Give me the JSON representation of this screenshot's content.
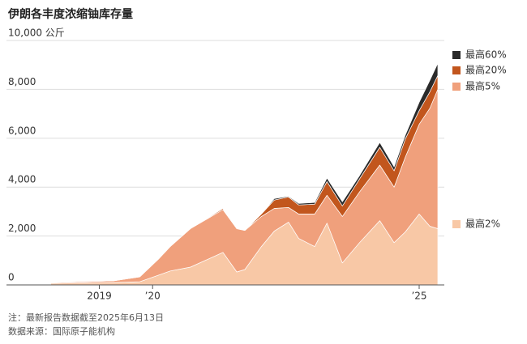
{
  "chart_data": {
    "type": "stacked-area",
    "title": "伊朗各丰度浓缩铀库存量",
    "notes": [
      "注：最新报告数据截至2025年6月13日",
      "数据来源：国际原子能机构"
    ],
    "x": [
      2018.09,
      2019.27,
      2019.76,
      2020.11,
      2020.33,
      2020.71,
      2021.32,
      2021.58,
      2021.73,
      2022.04,
      2022.28,
      2022.55,
      2022.74,
      2023.04,
      2023.27,
      2023.56,
      2023.88,
      2024.26,
      2024.53,
      2024.74,
      2025.0,
      2025.2,
      2025.35
    ],
    "xlim": [
      2018.05,
      2025.38
    ],
    "xticks": [
      2019,
      {
        "value": 2020,
        "label": "’20"
      },
      {
        "value": 2025,
        "label": "’25"
      }
    ],
    "ylim": [
      0,
      10000
    ],
    "yticks": [
      0,
      {
        "value": 2000,
        "label": "2,000"
      },
      {
        "value": 4000,
        "label": "4,000"
      },
      {
        "value": 6000,
        "label": "6,000"
      },
      {
        "value": 8000,
        "label": "8,000"
      },
      {
        "value": 10000,
        "label": "10,000 公斤"
      }
    ],
    "grid": true,
    "series": [
      {
        "name": "最高2%",
        "color": "#f8c8a6",
        "values": [
          70,
          100,
          130,
          400,
          570,
          730,
          1330,
          530,
          630,
          1570,
          2200,
          2570,
          1900,
          1570,
          2530,
          900,
          1730,
          2630,
          1730,
          2170,
          2900,
          2400,
          2300
        ]
      },
      {
        "name": "最高5%",
        "color": "#f0a07c",
        "values": [
          30,
          70,
          200,
          660,
          1000,
          1570,
          1750,
          1770,
          1600,
          1230,
          930,
          600,
          1000,
          1330,
          1140,
          1900,
          2070,
          2270,
          2270,
          3060,
          3670,
          4830,
          5700
        ]
      },
      {
        "name": "最高20%",
        "color": "#c2561d",
        "values": [
          0,
          0,
          0,
          0,
          0,
          0,
          50,
          0,
          0,
          100,
          340,
          430,
          370,
          400,
          560,
          430,
          530,
          730,
          670,
          740,
          560,
          670,
          570
        ]
      },
      {
        "name": "最高60%",
        "color": "#2a2a2a",
        "values": [
          0,
          0,
          0,
          0,
          0,
          0,
          0,
          0,
          0,
          0,
          60,
          30,
          60,
          70,
          140,
          170,
          140,
          200,
          160,
          160,
          340,
          470,
          500
        ]
      }
    ]
  }
}
